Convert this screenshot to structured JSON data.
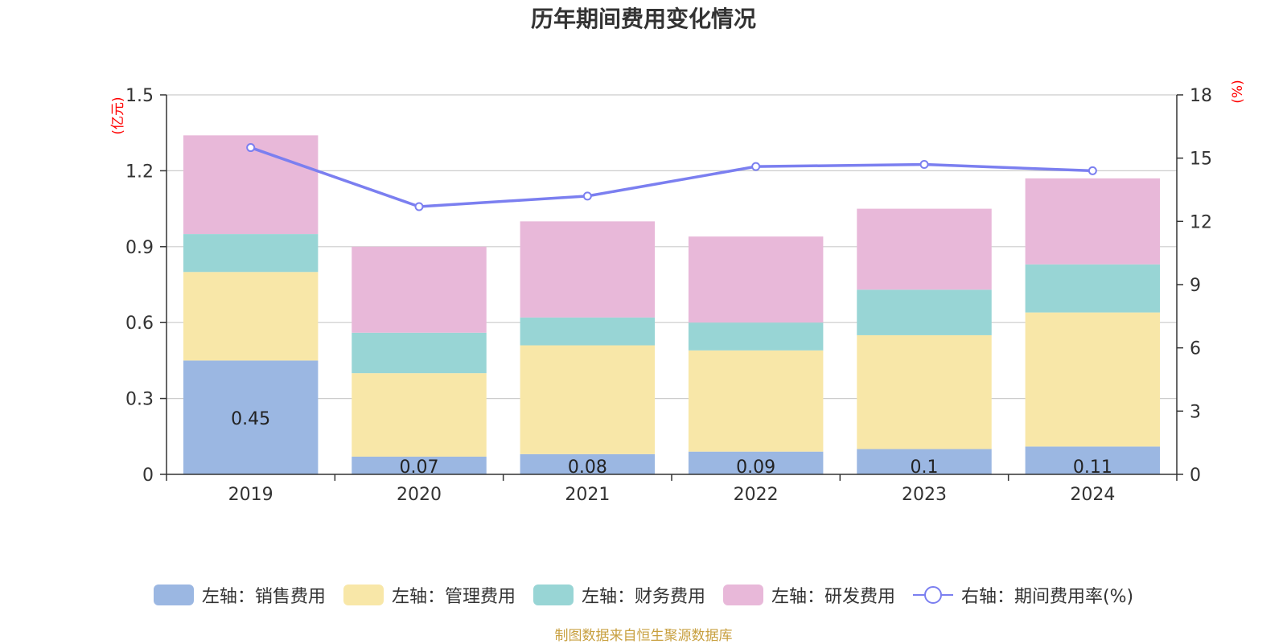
{
  "chart_data": {
    "type": "bar",
    "title": "历年期间费用变化情况",
    "categories": [
      "2019",
      "2020",
      "2021",
      "2022",
      "2023",
      "2024"
    ],
    "left_axis": {
      "unit_label": "(亿元)",
      "ylim": [
        0,
        1.5
      ],
      "ticks": [
        "0",
        "0.3",
        "0.6",
        "0.9",
        "1.2",
        "1.5"
      ]
    },
    "right_axis": {
      "unit_label": "(%)",
      "ylim": [
        0,
        18
      ],
      "ticks": [
        "0",
        "3",
        "6",
        "9",
        "12",
        "15",
        "18"
      ]
    },
    "stacked": true,
    "grid": true,
    "legend_position": "bottom",
    "series": [
      {
        "name": "左轴：销售费用",
        "type": "bar",
        "axis": "left",
        "color": "#9bb7e2",
        "values": [
          0.45,
          0.07,
          0.08,
          0.09,
          0.1,
          0.11
        ],
        "labels": [
          "0.45",
          "0.07",
          "0.08",
          "0.09",
          "0.1",
          "0.11"
        ]
      },
      {
        "name": "左轴：管理费用",
        "type": "bar",
        "axis": "left",
        "color": "#f8e7a8",
        "values": [
          0.35,
          0.33,
          0.43,
          0.4,
          0.45,
          0.53
        ]
      },
      {
        "name": "左轴：财务费用",
        "type": "bar",
        "axis": "left",
        "color": "#98d5d5",
        "values": [
          0.15,
          0.16,
          0.11,
          0.11,
          0.18,
          0.19
        ]
      },
      {
        "name": "左轴：研发费用",
        "type": "bar",
        "axis": "left",
        "color": "#e8b8d9",
        "values": [
          0.39,
          0.34,
          0.38,
          0.34,
          0.32,
          0.34
        ]
      },
      {
        "name": "右轴：期间费用率(%)",
        "type": "line",
        "axis": "right",
        "color": "#7b7ff0",
        "values": [
          15.5,
          12.7,
          13.2,
          14.6,
          14.7,
          14.4
        ]
      }
    ]
  },
  "source_note": "制图数据来自恒生聚源数据库",
  "colors": {
    "axis_unit": "#ff0000",
    "grid": "#cccccc",
    "axis": "#333333"
  }
}
